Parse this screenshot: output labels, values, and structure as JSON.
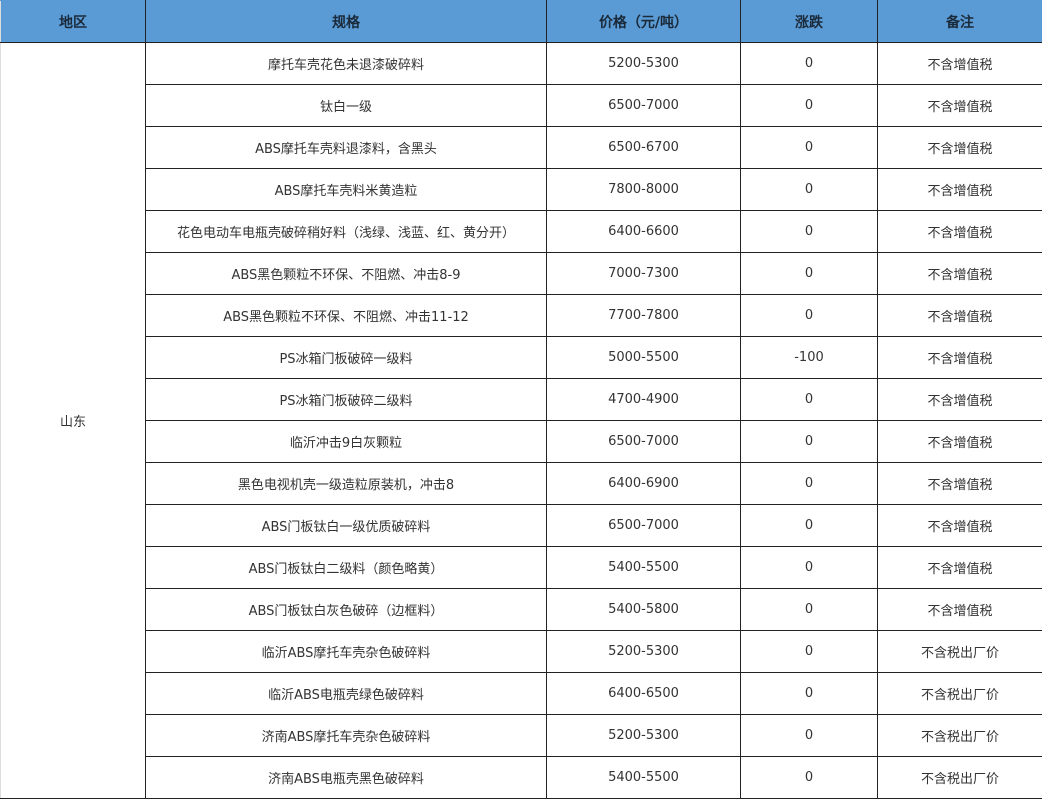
{
  "header": {
    "region": "地区",
    "spec": "规格",
    "price": "价格（元/吨）",
    "change": "涨跌",
    "note": "备注"
  },
  "colors": {
    "header_bg": "#5b9bd5"
  },
  "region": "山东",
  "rows": [
    {
      "spec": "摩托车壳花色未退漆破碎料",
      "price": "5200-5300",
      "change": "0",
      "note": "不含增值税"
    },
    {
      "spec": "钛白一级",
      "price": "6500-7000",
      "change": "0",
      "note": "不含增值税"
    },
    {
      "spec": "ABS摩托车壳料退漆料，含黑头",
      "price": "6500-6700",
      "change": "0",
      "note": "不含增值税"
    },
    {
      "spec": "ABS摩托车壳料米黄造粒",
      "price": "7800-8000",
      "change": "0",
      "note": "不含增值税"
    },
    {
      "spec": "花色电动车电瓶壳破碎稍好料（浅绿、浅蓝、红、黄分开）",
      "price": "6400-6600",
      "change": "0",
      "note": "不含增值税"
    },
    {
      "spec": "ABS黑色颗粒不环保、不阻燃、冲击8-9",
      "price": "7000-7300",
      "change": "0",
      "note": "不含增值税"
    },
    {
      "spec": "ABS黑色颗粒不环保、不阻燃、冲击11-12",
      "price": "7700-7800",
      "change": "0",
      "note": "不含增值税"
    },
    {
      "spec": "PS冰箱门板破碎一级料",
      "price": "5000-5500",
      "change": "-100",
      "note": "不含增值税"
    },
    {
      "spec": "PS冰箱门板破碎二级料",
      "price": "4700-4900",
      "change": "0",
      "note": "不含增值税"
    },
    {
      "spec": "临沂冲击9白灰颗粒",
      "price": "6500-7000",
      "change": "0",
      "note": "不含增值税"
    },
    {
      "spec": "黑色电视机壳一级造粒原装机，冲击8",
      "price": "6400-6900",
      "change": "0",
      "note": "不含增值税"
    },
    {
      "spec": "ABS门板钛白一级优质破碎料",
      "price": "6500-7000",
      "change": "0",
      "note": "不含增值税"
    },
    {
      "spec": "ABS门板钛白二级料（颜色略黄）",
      "price": "5400-5500",
      "change": "0",
      "note": "不含增值税"
    },
    {
      "spec": "ABS门板钛白灰色破碎（边框料）",
      "price": "5400-5800",
      "change": "0",
      "note": "不含增值税"
    },
    {
      "spec": "临沂ABS摩托车壳杂色破碎料",
      "price": "5200-5300",
      "change": "0",
      "note": "不含税出厂价"
    },
    {
      "spec": "临沂ABS电瓶壳绿色破碎料",
      "price": "6400-6500",
      "change": "0",
      "note": "不含税出厂价"
    },
    {
      "spec": "济南ABS摩托车壳杂色破碎料",
      "price": "5200-5300",
      "change": "0",
      "note": "不含税出厂价"
    },
    {
      "spec": "济南ABS电瓶壳黑色破碎料",
      "price": "5400-5500",
      "change": "0",
      "note": "不含税出厂价"
    }
  ]
}
